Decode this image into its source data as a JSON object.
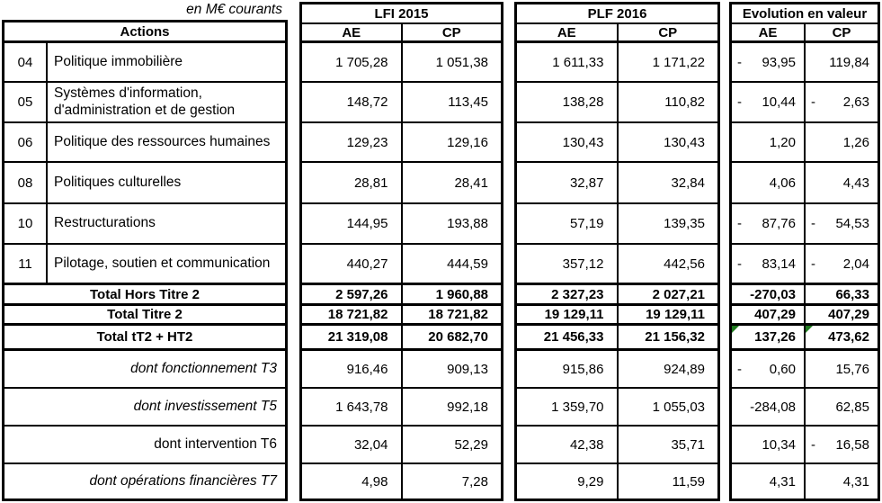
{
  "meta": {
    "unit_label": "en M€ courants"
  },
  "colors": {
    "border": "#000000",
    "background": "#ffffff",
    "text": "#000000",
    "flag_green": "#1f7a1f"
  },
  "columns": {
    "ae": "AE",
    "cp": "CP"
  },
  "actions_table": {
    "header": "Actions",
    "rows": [
      {
        "code": "04",
        "label": "Politique immobilière",
        "flag": true
      },
      {
        "code": "05",
        "label": "Systèmes d'information, d'administration et de gestion",
        "flag": true
      },
      {
        "code": "06",
        "label": "Politique des ressources humaines",
        "flag": true
      },
      {
        "code": "08",
        "label": "Politiques culturelles",
        "flag": true
      },
      {
        "code": "10",
        "label": "Restructurations",
        "flag": false
      },
      {
        "code": "11",
        "label": "Pilotage, soutien et communication",
        "flag": false
      }
    ],
    "total_rows": [
      "Total Hors Titre 2",
      "Total Titre 2",
      "Total tT2 + HT2"
    ],
    "dont_rows": [
      {
        "label": "dont fonctionnement T3",
        "italic": true
      },
      {
        "label": "dont investissement T5",
        "italic": true
      },
      {
        "label": "dont intervention T6",
        "italic": false
      },
      {
        "label": "dont opérations financières T7",
        "italic": true
      }
    ]
  },
  "blocks": [
    {
      "id": "lfi2015",
      "title": "LFI 2015",
      "rows": [
        {
          "ae": "1 705,28",
          "cp": "1 051,38"
        },
        {
          "ae": "148,72",
          "cp": "113,45"
        },
        {
          "ae": "129,23",
          "cp": "129,16"
        },
        {
          "ae": "28,81",
          "cp": "28,41"
        },
        {
          "ae": "144,95",
          "cp": "193,88"
        },
        {
          "ae": "440,27",
          "cp": "444,59"
        },
        {
          "ae": "2 597,26",
          "cp": "1 960,88"
        },
        {
          "ae": "18 721,82",
          "cp": "18 721,82"
        },
        {
          "ae": "21 319,08",
          "cp": "20 682,70"
        },
        {
          "ae": "916,46",
          "cp": "909,13"
        },
        {
          "ae": "1 643,78",
          "cp": "992,18"
        },
        {
          "ae": "32,04",
          "cp": "52,29"
        },
        {
          "ae": "4,98",
          "cp": "7,28"
        }
      ]
    },
    {
      "id": "plf2016",
      "title": "PLF 2016",
      "rows": [
        {
          "ae": "1 611,33",
          "cp": "1 171,22"
        },
        {
          "ae": "138,28",
          "cp": "110,82"
        },
        {
          "ae": "130,43",
          "cp": "130,43"
        },
        {
          "ae": "32,87",
          "cp": "32,84"
        },
        {
          "ae": "57,19",
          "cp": "139,35"
        },
        {
          "ae": "357,12",
          "cp": "442,56"
        },
        {
          "ae": "2 327,23",
          "cp": "2 027,21"
        },
        {
          "ae": "19 129,11",
          "cp": "19 129,11"
        },
        {
          "ae": "21 456,33",
          "cp": "21 156,32"
        },
        {
          "ae": "915,86",
          "cp": "924,89"
        },
        {
          "ae": "1 359,70",
          "cp": "1 055,03"
        },
        {
          "ae": "42,38",
          "cp": "35,71"
        },
        {
          "ae": "9,29",
          "cp": "11,59"
        }
      ]
    },
    {
      "id": "evolution",
      "title": "Evolution en valeur",
      "rows": [
        {
          "ae": {
            "sign": "-",
            "value": "93,95",
            "flag": false
          },
          "cp": {
            "sign": "",
            "value": "119,84",
            "flag": false
          }
        },
        {
          "ae": {
            "sign": "-",
            "value": "10,44",
            "flag": false
          },
          "cp": {
            "sign": "-",
            "value": "2,63",
            "flag": false
          }
        },
        {
          "ae": {
            "sign": "",
            "value": "1,20",
            "flag": false
          },
          "cp": {
            "sign": "",
            "value": "1,26",
            "flag": false
          }
        },
        {
          "ae": {
            "sign": "",
            "value": "4,06",
            "flag": false
          },
          "cp": {
            "sign": "",
            "value": "4,43",
            "flag": false
          }
        },
        {
          "ae": {
            "sign": "-",
            "value": "87,76",
            "flag": false
          },
          "cp": {
            "sign": "-",
            "value": "54,53",
            "flag": false
          }
        },
        {
          "ae": {
            "sign": "-",
            "value": "83,14",
            "flag": false
          },
          "cp": {
            "sign": "-",
            "value": "2,04",
            "flag": false
          }
        },
        {
          "ae": {
            "sign": "",
            "value": "-270,03",
            "flag": false
          },
          "cp": {
            "sign": "",
            "value": "66,33",
            "flag": false
          }
        },
        {
          "ae": {
            "sign": "",
            "value": "407,29",
            "flag": false
          },
          "cp": {
            "sign": "",
            "value": "407,29",
            "flag": false
          }
        },
        {
          "ae": {
            "sign": "",
            "value": "137,26",
            "flag": true
          },
          "cp": {
            "sign": "",
            "value": "473,62",
            "flag": true
          }
        },
        {
          "ae": {
            "sign": "-",
            "value": "0,60",
            "flag": false
          },
          "cp": {
            "sign": "",
            "value": "15,76",
            "flag": false
          }
        },
        {
          "ae": {
            "sign": "",
            "value": "-284,08",
            "flag": false
          },
          "cp": {
            "sign": "",
            "value": "62,85",
            "flag": false
          }
        },
        {
          "ae": {
            "sign": "",
            "value": "10,34",
            "flag": false
          },
          "cp": {
            "sign": "-",
            "value": "16,58",
            "flag": false
          }
        },
        {
          "ae": {
            "sign": "",
            "value": "4,31",
            "flag": false
          },
          "cp": {
            "sign": "",
            "value": "4,31",
            "flag": false
          }
        }
      ]
    }
  ]
}
